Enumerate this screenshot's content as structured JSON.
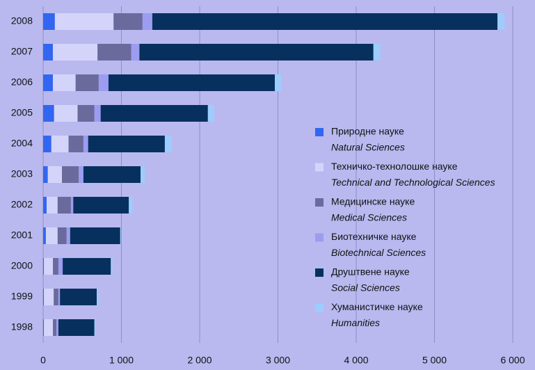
{
  "chart_data": {
    "type": "stacked-bar-horizontal",
    "categories": [
      "2008",
      "2007",
      "2006",
      "2005",
      "2004",
      "2003",
      "2002",
      "2001",
      "2000",
      "1999",
      "1998"
    ],
    "series": [
      {
        "name": "Природне науке",
        "name_en": "Natural Sciences",
        "color": "#3366f0",
        "values": [
          150,
          125,
          125,
          140,
          105,
          60,
          45,
          35,
          10,
          10,
          10
        ]
      },
      {
        "name": "Техничко-технолошке науке",
        "name_en": "Technical and Technological Sciences",
        "color": "#d4d4fa",
        "values": [
          750,
          570,
          290,
          300,
          220,
          180,
          140,
          150,
          115,
          125,
          115
        ]
      },
      {
        "name": "Медицинске науке",
        "name_en": "Medical Sciences",
        "color": "#6a6a9c",
        "values": [
          370,
          430,
          295,
          215,
          190,
          215,
          170,
          115,
          70,
          60,
          45
        ]
      },
      {
        "name": "Биотехничке науке",
        "name_en": "Biotechnical Sciences",
        "color": "#9c9cf0",
        "values": [
          125,
          105,
          125,
          80,
          60,
          60,
          30,
          45,
          55,
          20,
          25
        ]
      },
      {
        "name": "Друштвене науке",
        "name_en": "Social Sciences",
        "color": "#08305e",
        "values": [
          4410,
          2990,
          2125,
          1370,
          980,
          730,
          710,
          640,
          615,
          470,
          460
        ]
      },
      {
        "name": "Хуманистичке науке",
        "name_en": "Humanities",
        "color": "#9ccdfc",
        "values": [
          90,
          90,
          80,
          80,
          90,
          55,
          45,
          10,
          20,
          20,
          10
        ]
      }
    ],
    "xlim": [
      0,
      6000
    ],
    "xticks": [
      0,
      {
        "value": 1000,
        "label": "1 000"
      },
      {
        "value": 2000,
        "label": "2 000"
      },
      {
        "value": 3000,
        "label": "3 000"
      },
      {
        "value": 4000,
        "label": "4 000"
      },
      {
        "value": 5000,
        "label": "5 000"
      },
      {
        "value": 6000,
        "label": "6 000"
      }
    ],
    "grid": true,
    "legend": "right"
  }
}
